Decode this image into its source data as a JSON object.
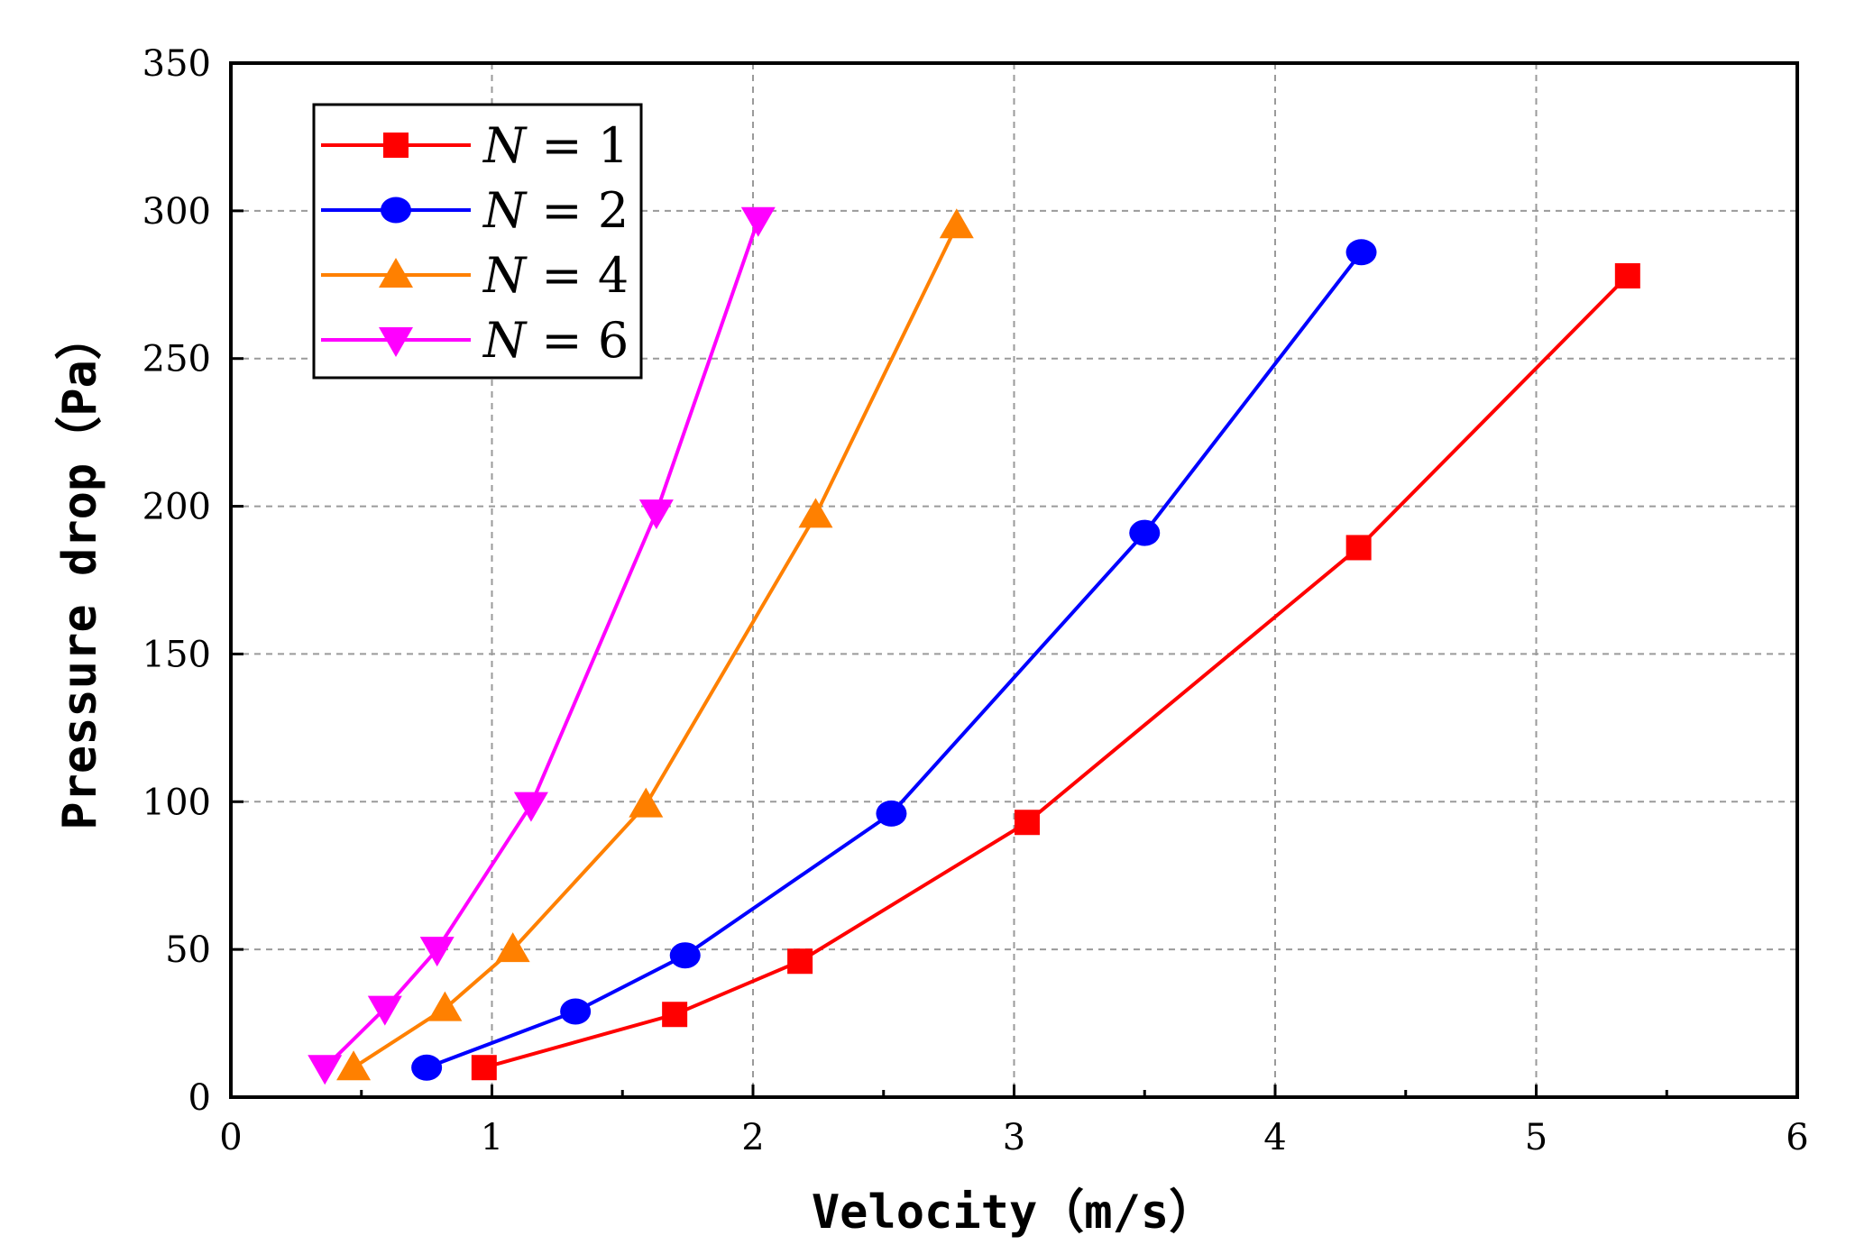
{
  "chart_data": {
    "type": "line",
    "title": "",
    "xlabel": "Velocity（m/s）",
    "ylabel": "Pressure drop（Pa）",
    "xlim": [
      0,
      6
    ],
    "ylim": [
      0,
      350
    ],
    "xticks": [
      0,
      1,
      2,
      3,
      4,
      5,
      6
    ],
    "yticks": [
      0,
      50,
      100,
      150,
      200,
      250,
      300,
      350
    ],
    "grid": true,
    "legend_position": "top-left",
    "series": [
      {
        "name": "N = 1",
        "label_var": "N",
        "label_rest": " = 1",
        "color": "#ff0000",
        "marker": "square",
        "x": [
          0.97,
          1.7,
          2.18,
          3.05,
          4.32,
          5.35
        ],
        "y": [
          10,
          28,
          46,
          93,
          186,
          278
        ]
      },
      {
        "name": "N = 2",
        "label_var": "N",
        "label_rest": " = 2",
        "color": "#0000ff",
        "marker": "circle",
        "x": [
          0.75,
          1.32,
          1.74,
          2.53,
          3.5,
          4.33
        ],
        "y": [
          10,
          29,
          48,
          96,
          191,
          286
        ]
      },
      {
        "name": "N = 4",
        "label_var": "N",
        "label_rest": " = 4",
        "color": "#ff8000",
        "marker": "triangle-up",
        "x": [
          0.47,
          0.82,
          1.08,
          1.59,
          2.24,
          2.78
        ],
        "y": [
          10,
          30,
          50,
          99,
          197,
          295
        ]
      },
      {
        "name": "N = 6",
        "label_var": "N",
        "label_rest": " = 6",
        "color": "#ff00ff",
        "marker": "triangle-down",
        "x": [
          0.36,
          0.59,
          0.79,
          1.15,
          1.63,
          2.02
        ],
        "y": [
          10,
          30,
          50,
          99,
          198,
          297
        ]
      }
    ]
  }
}
